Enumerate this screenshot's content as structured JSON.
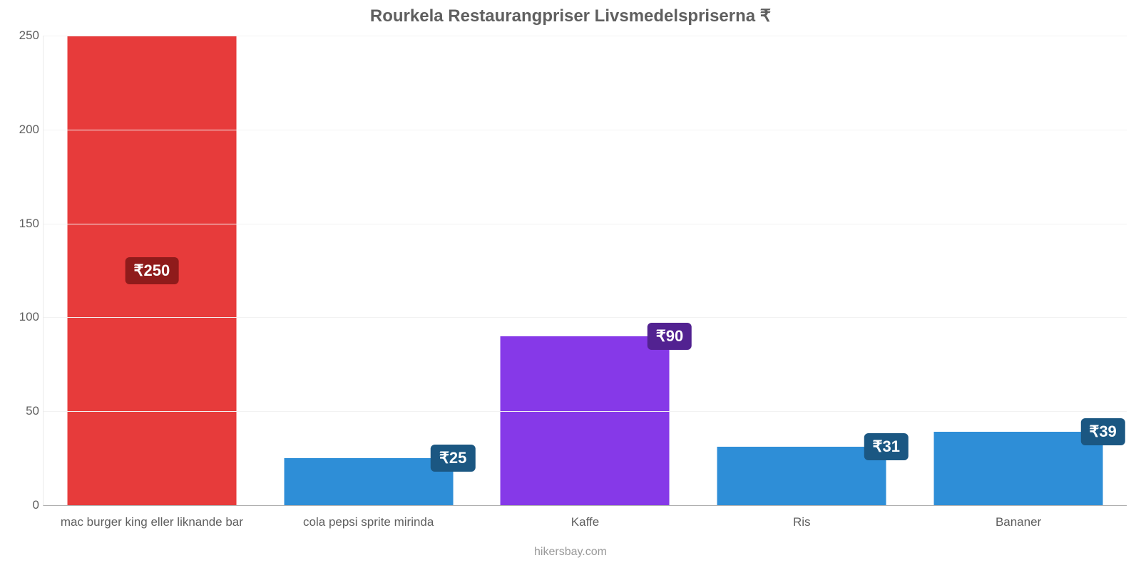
{
  "chart": {
    "type": "bar",
    "title": "Rourkela Restaurangpriser Livsmedelspriserna ₹",
    "title_fontsize": 24,
    "title_color": "#5f5f5f",
    "caption": "hikersbay.com",
    "caption_color": "#9a9a9a",
    "caption_fontsize": 16,
    "background_color": "#ffffff",
    "grid_color": "#f2f2f2",
    "axis_color": "#e9e9e9",
    "baseline_color": "#b0b0b0",
    "ylim": [
      0,
      250
    ],
    "ytick_step": 50,
    "yticks": [
      0,
      50,
      100,
      150,
      200,
      250
    ],
    "ytick_fontsize": 17,
    "ytick_color": "#5f5f5f",
    "xcat_fontsize": 17,
    "xcat_color": "#5f5f5f",
    "bar_width_ratio": 0.78,
    "value_prefix": "₹",
    "value_badge_fontsize": 22,
    "value_badge_radius": 6,
    "value_badge_padding": "6px 12px",
    "value_badge_text_color": "#ffffff",
    "categories": [
      "mac burger king eller liknande bar",
      "cola pepsi sprite mirinda",
      "Kaffe",
      "Ris",
      "Bananer"
    ],
    "values": [
      250,
      25,
      90,
      31,
      39
    ],
    "value_labels": [
      "₹250",
      "₹25",
      "₹90",
      "₹31",
      "₹39"
    ],
    "bar_colors": [
      "#e73b3b",
      "#2e8ed7",
      "#8639e8",
      "#2e8ed7",
      "#2e8ed7"
    ],
    "value_badge_colors": [
      "#8f1b1b",
      "#1b5782",
      "#522291",
      "#1b5782",
      "#1b5782"
    ],
    "value_badge_mode": [
      "center",
      "right",
      "right",
      "right",
      "right"
    ]
  }
}
